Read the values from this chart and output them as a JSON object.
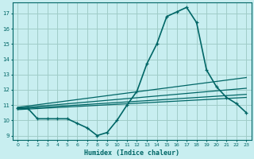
{
  "xlabel": "Humidex (Indice chaleur)",
  "bg_color": "#c8eef0",
  "grid_color": "#a0ccc8",
  "line_color": "#006666",
  "xlim": [
    -0.5,
    23.5
  ],
  "ylim": [
    8.7,
    17.7
  ],
  "xticks": [
    0,
    1,
    2,
    3,
    4,
    5,
    6,
    7,
    8,
    9,
    10,
    11,
    12,
    13,
    14,
    15,
    16,
    17,
    18,
    19,
    20,
    21,
    22,
    23
  ],
  "yticks": [
    9,
    10,
    11,
    12,
    13,
    14,
    15,
    16,
    17
  ],
  "lines": [
    {
      "x": [
        0,
        1,
        2,
        3,
        4,
        5,
        6,
        7,
        8,
        9,
        10,
        11,
        12,
        13,
        14,
        15,
        16,
        17,
        18,
        19,
        20,
        21,
        22,
        23
      ],
      "y": [
        10.8,
        10.8,
        10.1,
        10.1,
        10.1,
        10.1,
        9.8,
        9.5,
        9.0,
        9.2,
        10.0,
        11.0,
        11.9,
        13.7,
        15.0,
        16.8,
        17.1,
        17.4,
        16.4,
        13.3,
        12.2,
        11.5,
        11.1,
        10.5
      ],
      "marker": "+",
      "lw": 1.2,
      "ms": 3.5
    },
    {
      "x": [
        0,
        23
      ],
      "y": [
        10.7,
        11.5
      ],
      "marker": null,
      "lw": 0.9
    },
    {
      "x": [
        0,
        23
      ],
      "y": [
        10.75,
        11.7
      ],
      "marker": null,
      "lw": 0.9
    },
    {
      "x": [
        0,
        23
      ],
      "y": [
        10.8,
        12.1
      ],
      "marker": null,
      "lw": 0.9
    },
    {
      "x": [
        0,
        23
      ],
      "y": [
        10.85,
        12.8
      ],
      "marker": null,
      "lw": 0.9
    }
  ]
}
